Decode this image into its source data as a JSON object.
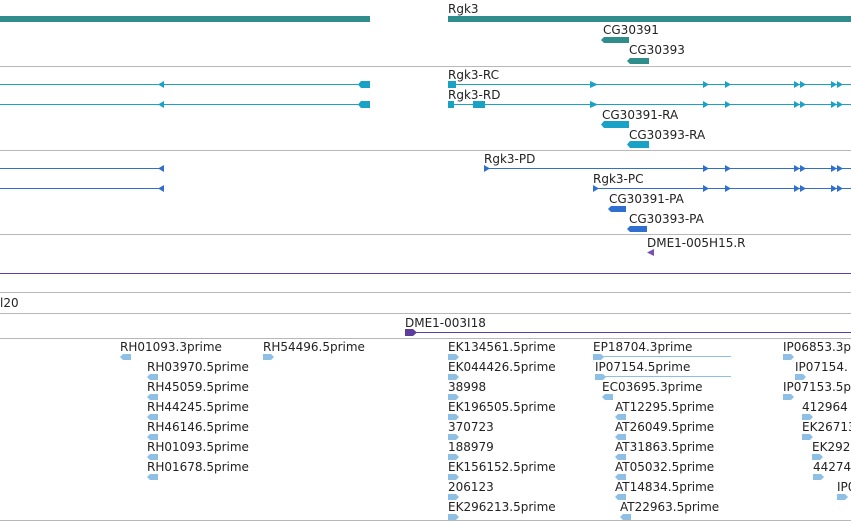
{
  "colors": {
    "gene": "#2f8d8b",
    "mrna": "#1aa1c6",
    "protein": "#2f6fcf",
    "overlap_line": "#5c3d9e",
    "est": "#8ebfe5",
    "separator": "#b8b8b8"
  },
  "genes": {
    "rgk3": "Rgk3",
    "cg30391": "CG30391",
    "cg30393": "CG30393"
  },
  "transcripts": {
    "rgk3_rc": "Rgk3-RC",
    "rgk3_rd": "Rgk3-RD",
    "cg30391_ra": "CG30391-RA",
    "cg30393_ra": "CG30393-RA"
  },
  "proteins": {
    "rgk3_pd": "Rgk3-PD",
    "rgk3_pc": "Rgk3-PC",
    "cg30391_pa": "CG30391-PA",
    "cg30393_pa": "CG30393-PA"
  },
  "bac_end": "DME1-005H15.R",
  "bac_clone_partial": "l20",
  "bac_clone": "DME1-003I18",
  "ests": {
    "col1": [
      "RH01093.3prime",
      "RH03970.5prime",
      "RH45059.5prime",
      "RH44245.5prime",
      "RH46146.5prime",
      "RH01093.5prime",
      "RH01678.5prime"
    ],
    "col2": [
      "RH54496.5prime"
    ],
    "col3": [
      "EK134561.5prime",
      "EK044426.5prime",
      "38998",
      "EK196505.5prime",
      "370723",
      "188979",
      "EK156152.5prime",
      "206123",
      "EK296213.5prime"
    ],
    "col4": [
      "EP18704.3prime",
      "IP07154.5prime",
      "EC03695.3prime",
      "AT12295.5prime",
      "AT26049.5prime",
      "AT31863.5prime",
      "AT05032.5prime",
      "AT14834.5prime",
      "AT22963.5prime"
    ],
    "col5": [
      "IP06853.3p",
      "IP07154.",
      "IP07153.5p",
      "412964",
      "EK26713",
      "EK292",
      "44274",
      "IP0"
    ]
  }
}
